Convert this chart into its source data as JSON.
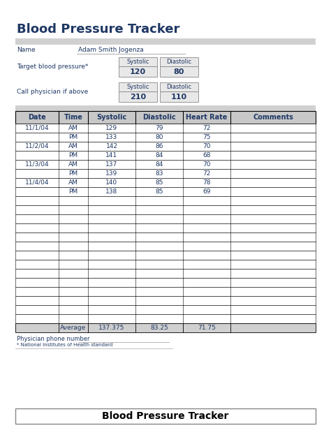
{
  "title": "Blood Pressure Tracker",
  "name_label": "Name",
  "name_value": "Adam Smith Jogenza",
  "target_label": "Target blood pressure*",
  "call_label": "Call physician if above",
  "systolic_label": "Systolic",
  "diastolic_label": "Diastolic",
  "target_systolic": "120",
  "target_diastolic": "80",
  "call_systolic": "210",
  "call_diastolic": "110",
  "col_headers": [
    "Date",
    "Time",
    "Systolic",
    "Diastolic",
    "Heart Rate",
    "Comments"
  ],
  "table_data": [
    [
      "11/1/04",
      "AM",
      "129",
      "79",
      "72",
      ""
    ],
    [
      "",
      "PM",
      "133",
      "80",
      "75",
      ""
    ],
    [
      "11/2/04",
      "AM",
      "142",
      "86",
      "70",
      ""
    ],
    [
      "",
      "PM",
      "141",
      "84",
      "68",
      ""
    ],
    [
      "11/3/04",
      "AM",
      "137",
      "84",
      "70",
      ""
    ],
    [
      "",
      "PM",
      "139",
      "83",
      "72",
      ""
    ],
    [
      "11/4/04",
      "AM",
      "140",
      "85",
      "78",
      ""
    ],
    [
      "",
      "PM",
      "138",
      "85",
      "69",
      ""
    ],
    [
      "",
      "",
      "",
      "",
      "",
      ""
    ],
    [
      "",
      "",
      "",
      "",
      "",
      ""
    ],
    [
      "",
      "",
      "",
      "",
      "",
      ""
    ],
    [
      "",
      "",
      "",
      "",
      "",
      ""
    ],
    [
      "",
      "",
      "",
      "",
      "",
      ""
    ],
    [
      "",
      "",
      "",
      "",
      "",
      ""
    ],
    [
      "",
      "",
      "",
      "",
      "",
      ""
    ],
    [
      "",
      "",
      "",
      "",
      "",
      ""
    ],
    [
      "",
      "",
      "",
      "",
      "",
      ""
    ],
    [
      "",
      "",
      "",
      "",
      "",
      ""
    ],
    [
      "",
      "",
      "",
      "",
      "",
      ""
    ],
    [
      "",
      "",
      "",
      "",
      "",
      ""
    ],
    [
      "",
      "",
      "",
      "",
      "",
      ""
    ],
    [
      "",
      "",
      "",
      "",
      "",
      ""
    ]
  ],
  "avg_row": [
    "",
    "Average",
    "137.375",
    "83.25",
    "71.75",
    ""
  ],
  "physician_label": "Physician phone number",
  "footnote": "* National Institutes of Health standard",
  "footer_title": "Blood Pressure Tracker",
  "bg_color": "#ffffff",
  "header_bg": "#d0d0d0",
  "col_header_bg": "#c8c8c8",
  "avg_bg": "#d0d0d0",
  "border_color": "#000000",
  "title_color": "#1f3864",
  "header_text_color": "#1f3864",
  "data_text_color": "#1f3864",
  "small_box_bg": "#e8e8e8",
  "small_box_border": "#888888",
  "outer_border": "#888888"
}
